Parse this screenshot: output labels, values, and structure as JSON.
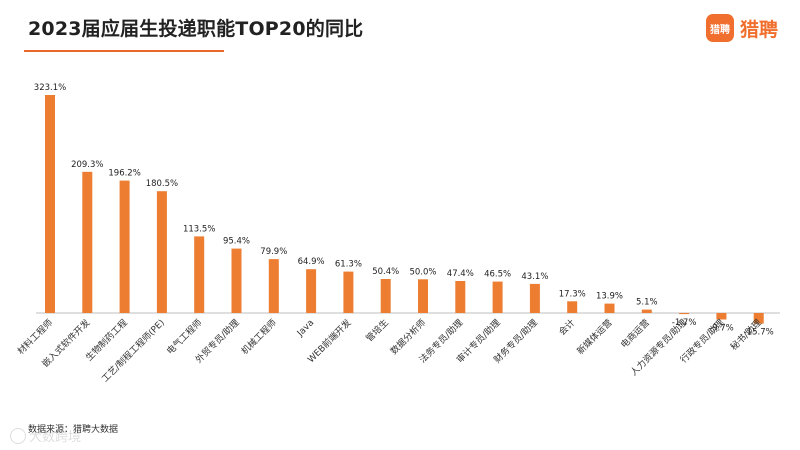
{
  "header": {
    "title": "2023届应届生投递职能TOP20的同比",
    "logo_badge": "猎聘",
    "logo_text": "猎聘"
  },
  "footer": {
    "source": "数据来源：猎聘大数据",
    "watermark": "大数跨境"
  },
  "colors": {
    "bar": "#ed7d31",
    "accent": "#e8682a"
  },
  "chart_data": {
    "type": "bar",
    "title": "2023届应届生投递职能TOP20的同比",
    "xlabel": "",
    "ylabel": "",
    "grid": false,
    "categories": [
      "材料工程师",
      "嵌入式软件开发",
      "生物制药工程",
      "工艺/制程工程师(PE)",
      "电气工程师",
      "外贸专员/助理",
      "机械工程师",
      "Java",
      "WEB前端开发",
      "管培生",
      "数据分析师",
      "法务专员/助理",
      "审计专员/助理",
      "财务专员/助理",
      "会计",
      "新媒体运营",
      "电商运营",
      "人力资源专员/助理",
      "行政专员/助理",
      "秘书/助理"
    ],
    "values": [
      323.1,
      209.3,
      196.2,
      180.5,
      113.5,
      95.4,
      79.9,
      64.9,
      61.3,
      50.4,
      50.0,
      47.4,
      46.5,
      43.1,
      17.3,
      13.9,
      5.1,
      -1.7,
      -9.7,
      -15.7
    ],
    "labels": [
      "323.1%",
      "209.3%",
      "196.2%",
      "180.5%",
      "113.5%",
      "95.4%",
      "79.9%",
      "64.9%",
      "61.3%",
      "50.4%",
      "50.0%",
      "47.4%",
      "46.5%",
      "43.1%",
      "17.3%",
      "13.9%",
      "5.1%",
      "-1.7%",
      "-9.7%",
      "-15.7%"
    ],
    "ylim": [
      -20,
      330
    ]
  }
}
